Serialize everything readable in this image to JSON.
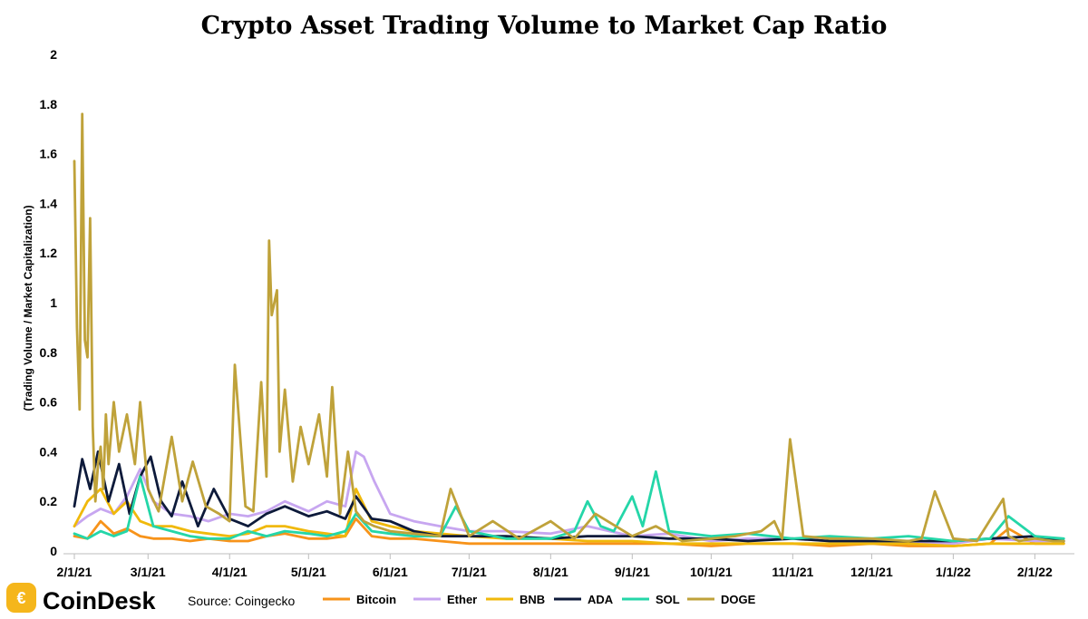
{
  "brand": {
    "logo_text": "CoinDesk",
    "accent": "#f5b61b"
  },
  "source": "Source: Coingecko",
  "chart_data": {
    "type": "line",
    "title": "Crypto Asset Trading Volume to Market Cap Ratio",
    "xlabel": "",
    "ylabel": "(Trading Volume / Market Capitalization)",
    "ylim": [
      0,
      2
    ],
    "yticks": [
      "0",
      "0.2",
      "0.4",
      "0.6",
      "0.8",
      "1",
      "1.2",
      "1.4",
      "1.6",
      "1.8",
      "2"
    ],
    "xlim": [
      "2021-02-01",
      "2022-02-15"
    ],
    "xticks": [
      {
        "label": "2/1/21",
        "date": "2021-02-01"
      },
      {
        "label": "3/1/21",
        "date": "2021-03-01"
      },
      {
        "label": "4/1/21",
        "date": "2021-04-01"
      },
      {
        "label": "5/1/21",
        "date": "2021-05-01"
      },
      {
        "label": "6/1/21",
        "date": "2021-06-01"
      },
      {
        "label": "7/1/21",
        "date": "2021-07-01"
      },
      {
        "label": "8/1/21",
        "date": "2021-08-01"
      },
      {
        "label": "9/1/21",
        "date": "2021-09-01"
      },
      {
        "label": "10/1/21",
        "date": "2021-10-01"
      },
      {
        "label": "11/1/21",
        "date": "2021-11-01"
      },
      {
        "label": "12/1/21",
        "date": "2021-12-01"
      },
      {
        "label": "1/1/22",
        "date": "2022-01-01"
      },
      {
        "label": "2/1/22",
        "date": "2022-02-01"
      }
    ],
    "grid": false,
    "legend_position": "bottom",
    "series": [
      {
        "name": "Bitcoin",
        "color": "#f7931a",
        "x": [
          "2021-02-01",
          "2021-02-06",
          "2021-02-11",
          "2021-02-16",
          "2021-02-21",
          "2021-02-26",
          "2021-03-03",
          "2021-03-10",
          "2021-03-17",
          "2021-03-24",
          "2021-04-01",
          "2021-04-08",
          "2021-04-15",
          "2021-04-22",
          "2021-05-01",
          "2021-05-08",
          "2021-05-15",
          "2021-05-19",
          "2021-05-25",
          "2021-06-01",
          "2021-06-10",
          "2021-06-20",
          "2021-07-01",
          "2021-07-15",
          "2021-08-01",
          "2021-08-15",
          "2021-09-01",
          "2021-09-15",
          "2021-10-01",
          "2021-10-15",
          "2021-11-01",
          "2021-11-15",
          "2021-12-01",
          "2021-12-15",
          "2022-01-01",
          "2022-01-15",
          "2022-01-22",
          "2022-02-01",
          "2022-02-12"
        ],
        "y": [
          0.06,
          0.05,
          0.12,
          0.07,
          0.09,
          0.06,
          0.05,
          0.05,
          0.04,
          0.05,
          0.04,
          0.04,
          0.06,
          0.07,
          0.05,
          0.05,
          0.06,
          0.13,
          0.06,
          0.05,
          0.05,
          0.04,
          0.03,
          0.03,
          0.03,
          0.03,
          0.03,
          0.03,
          0.02,
          0.03,
          0.03,
          0.02,
          0.03,
          0.02,
          0.02,
          0.03,
          0.09,
          0.03,
          0.03
        ]
      },
      {
        "name": "Ether",
        "color": "#c7a6f0",
        "x": [
          "2021-02-01",
          "2021-02-06",
          "2021-02-11",
          "2021-02-16",
          "2021-02-21",
          "2021-02-26",
          "2021-03-03",
          "2021-03-10",
          "2021-03-17",
          "2021-03-24",
          "2021-04-01",
          "2021-04-08",
          "2021-04-15",
          "2021-04-22",
          "2021-05-01",
          "2021-05-08",
          "2021-05-15",
          "2021-05-19",
          "2021-05-22",
          "2021-05-26",
          "2021-06-01",
          "2021-06-10",
          "2021-06-20",
          "2021-07-01",
          "2021-07-15",
          "2021-08-01",
          "2021-08-15",
          "2021-09-01",
          "2021-09-15",
          "2021-10-01",
          "2021-10-15",
          "2021-11-01",
          "2021-11-15",
          "2021-12-01",
          "2021-12-15",
          "2022-01-01",
          "2022-01-15",
          "2022-02-01",
          "2022-02-12"
        ],
        "y": [
          0.1,
          0.14,
          0.17,
          0.15,
          0.22,
          0.33,
          0.2,
          0.15,
          0.14,
          0.12,
          0.15,
          0.14,
          0.16,
          0.2,
          0.16,
          0.2,
          0.18,
          0.4,
          0.38,
          0.28,
          0.15,
          0.12,
          0.1,
          0.08,
          0.08,
          0.07,
          0.1,
          0.06,
          0.07,
          0.04,
          0.05,
          0.05,
          0.04,
          0.04,
          0.04,
          0.03,
          0.05,
          0.04,
          0.04
        ]
      },
      {
        "name": "BNB",
        "color": "#f0b90b",
        "x": [
          "2021-02-01",
          "2021-02-06",
          "2021-02-11",
          "2021-02-16",
          "2021-02-21",
          "2021-02-26",
          "2021-03-03",
          "2021-03-10",
          "2021-03-17",
          "2021-03-24",
          "2021-04-01",
          "2021-04-08",
          "2021-04-15",
          "2021-04-22",
          "2021-05-01",
          "2021-05-08",
          "2021-05-15",
          "2021-05-19",
          "2021-05-25",
          "2021-06-01",
          "2021-06-10",
          "2021-06-20",
          "2021-07-01",
          "2021-07-15",
          "2021-08-01",
          "2021-08-15",
          "2021-09-01",
          "2021-09-15",
          "2021-10-01",
          "2021-10-15",
          "2021-11-01",
          "2021-11-15",
          "2021-12-01",
          "2021-12-15",
          "2022-01-01",
          "2022-01-15",
          "2022-02-01",
          "2022-02-12"
        ],
        "y": [
          0.1,
          0.2,
          0.25,
          0.15,
          0.2,
          0.12,
          0.1,
          0.1,
          0.08,
          0.07,
          0.06,
          0.07,
          0.1,
          0.1,
          0.08,
          0.07,
          0.06,
          0.25,
          0.12,
          0.1,
          0.08,
          0.07,
          0.06,
          0.05,
          0.05,
          0.04,
          0.04,
          0.03,
          0.03,
          0.03,
          0.03,
          0.03,
          0.03,
          0.03,
          0.02,
          0.03,
          0.03,
          0.03
        ]
      },
      {
        "name": "ADA",
        "color": "#0d1a3a",
        "x": [
          "2021-02-01",
          "2021-02-04",
          "2021-02-07",
          "2021-02-10",
          "2021-02-14",
          "2021-02-18",
          "2021-02-22",
          "2021-02-26",
          "2021-03-02",
          "2021-03-06",
          "2021-03-10",
          "2021-03-14",
          "2021-03-20",
          "2021-03-26",
          "2021-04-01",
          "2021-04-08",
          "2021-04-15",
          "2021-04-22",
          "2021-05-01",
          "2021-05-08",
          "2021-05-15",
          "2021-05-19",
          "2021-05-25",
          "2021-06-01",
          "2021-06-10",
          "2021-06-20",
          "2021-07-01",
          "2021-07-15",
          "2021-08-01",
          "2021-08-15",
          "2021-09-01",
          "2021-09-15",
          "2021-10-01",
          "2021-10-15",
          "2021-11-01",
          "2021-11-15",
          "2021-12-01",
          "2021-12-15",
          "2022-01-01",
          "2022-01-15",
          "2022-02-01",
          "2022-02-12"
        ],
        "y": [
          0.18,
          0.37,
          0.25,
          0.4,
          0.2,
          0.35,
          0.15,
          0.3,
          0.38,
          0.2,
          0.14,
          0.28,
          0.1,
          0.25,
          0.13,
          0.1,
          0.15,
          0.18,
          0.14,
          0.16,
          0.13,
          0.22,
          0.13,
          0.12,
          0.08,
          0.06,
          0.06,
          0.06,
          0.05,
          0.06,
          0.06,
          0.05,
          0.05,
          0.04,
          0.05,
          0.04,
          0.04,
          0.04,
          0.04,
          0.05,
          0.06,
          0.04
        ]
      },
      {
        "name": "SOL",
        "color": "#24d6a8",
        "x": [
          "2021-02-01",
          "2021-02-06",
          "2021-02-11",
          "2021-02-16",
          "2021-02-21",
          "2021-02-26",
          "2021-03-03",
          "2021-03-10",
          "2021-03-17",
          "2021-03-24",
          "2021-04-01",
          "2021-04-08",
          "2021-04-15",
          "2021-04-22",
          "2021-05-01",
          "2021-05-08",
          "2021-05-15",
          "2021-05-19",
          "2021-05-25",
          "2021-06-01",
          "2021-06-10",
          "2021-06-20",
          "2021-06-26",
          "2021-07-01",
          "2021-07-15",
          "2021-08-01",
          "2021-08-10",
          "2021-08-15",
          "2021-08-20",
          "2021-08-25",
          "2021-09-01",
          "2021-09-05",
          "2021-09-10",
          "2021-09-15",
          "2021-10-01",
          "2021-10-15",
          "2021-11-01",
          "2021-11-15",
          "2021-12-01",
          "2021-12-15",
          "2022-01-01",
          "2022-01-15",
          "2022-01-22",
          "2022-02-01",
          "2022-02-12"
        ],
        "y": [
          0.07,
          0.05,
          0.08,
          0.06,
          0.08,
          0.3,
          0.1,
          0.08,
          0.06,
          0.05,
          0.05,
          0.08,
          0.06,
          0.08,
          0.07,
          0.06,
          0.08,
          0.15,
          0.08,
          0.07,
          0.06,
          0.06,
          0.18,
          0.08,
          0.05,
          0.05,
          0.08,
          0.2,
          0.1,
          0.08,
          0.22,
          0.1,
          0.32,
          0.08,
          0.06,
          0.07,
          0.05,
          0.06,
          0.05,
          0.06,
          0.04,
          0.05,
          0.14,
          0.06,
          0.05
        ]
      },
      {
        "name": "DOGE",
        "color": "#bfa23a",
        "x": [
          "2021-02-01",
          "2021-02-02",
          "2021-02-03",
          "2021-02-04",
          "2021-02-05",
          "2021-02-06",
          "2021-02-07",
          "2021-02-08",
          "2021-02-09",
          "2021-02-10",
          "2021-02-11",
          "2021-02-12",
          "2021-02-13",
          "2021-02-14",
          "2021-02-16",
          "2021-02-18",
          "2021-02-21",
          "2021-02-24",
          "2021-02-26",
          "2021-03-01",
          "2021-03-05",
          "2021-03-10",
          "2021-03-14",
          "2021-03-18",
          "2021-03-23",
          "2021-03-28",
          "2021-04-01",
          "2021-04-03",
          "2021-04-07",
          "2021-04-10",
          "2021-04-13",
          "2021-04-15",
          "2021-04-16",
          "2021-04-17",
          "2021-04-19",
          "2021-04-20",
          "2021-04-22",
          "2021-04-25",
          "2021-04-28",
          "2021-05-01",
          "2021-05-05",
          "2021-05-08",
          "2021-05-10",
          "2021-05-13",
          "2021-05-16",
          "2021-05-19",
          "2021-05-22",
          "2021-05-26",
          "2021-06-01",
          "2021-06-10",
          "2021-06-20",
          "2021-06-24",
          "2021-07-01",
          "2021-07-10",
          "2021-07-20",
          "2021-08-01",
          "2021-08-10",
          "2021-08-18",
          "2021-09-01",
          "2021-09-10",
          "2021-09-20",
          "2021-10-01",
          "2021-10-10",
          "2021-10-20",
          "2021-10-25",
          "2021-10-28",
          "2021-10-31",
          "2021-11-05",
          "2021-11-15",
          "2021-12-01",
          "2021-12-15",
          "2021-12-20",
          "2021-12-25",
          "2022-01-01",
          "2022-01-10",
          "2022-01-20",
          "2022-01-22",
          "2022-01-26",
          "2022-02-01",
          "2022-02-08",
          "2022-02-12"
        ],
        "y": [
          1.57,
          0.9,
          0.57,
          1.76,
          0.85,
          0.78,
          1.34,
          0.5,
          0.2,
          0.35,
          0.42,
          0.25,
          0.55,
          0.35,
          0.6,
          0.4,
          0.55,
          0.35,
          0.6,
          0.25,
          0.16,
          0.46,
          0.2,
          0.36,
          0.18,
          0.15,
          0.12,
          0.75,
          0.18,
          0.16,
          0.68,
          0.3,
          1.25,
          0.95,
          1.05,
          0.4,
          0.65,
          0.28,
          0.5,
          0.35,
          0.55,
          0.3,
          0.66,
          0.15,
          0.4,
          0.16,
          0.12,
          0.1,
          0.08,
          0.07,
          0.06,
          0.25,
          0.06,
          0.12,
          0.05,
          0.12,
          0.05,
          0.15,
          0.06,
          0.1,
          0.04,
          0.05,
          0.06,
          0.08,
          0.12,
          0.05,
          0.45,
          0.06,
          0.05,
          0.05,
          0.04,
          0.05,
          0.24,
          0.05,
          0.04,
          0.21,
          0.06,
          0.04,
          0.05,
          0.04,
          0.04
        ]
      }
    ]
  }
}
